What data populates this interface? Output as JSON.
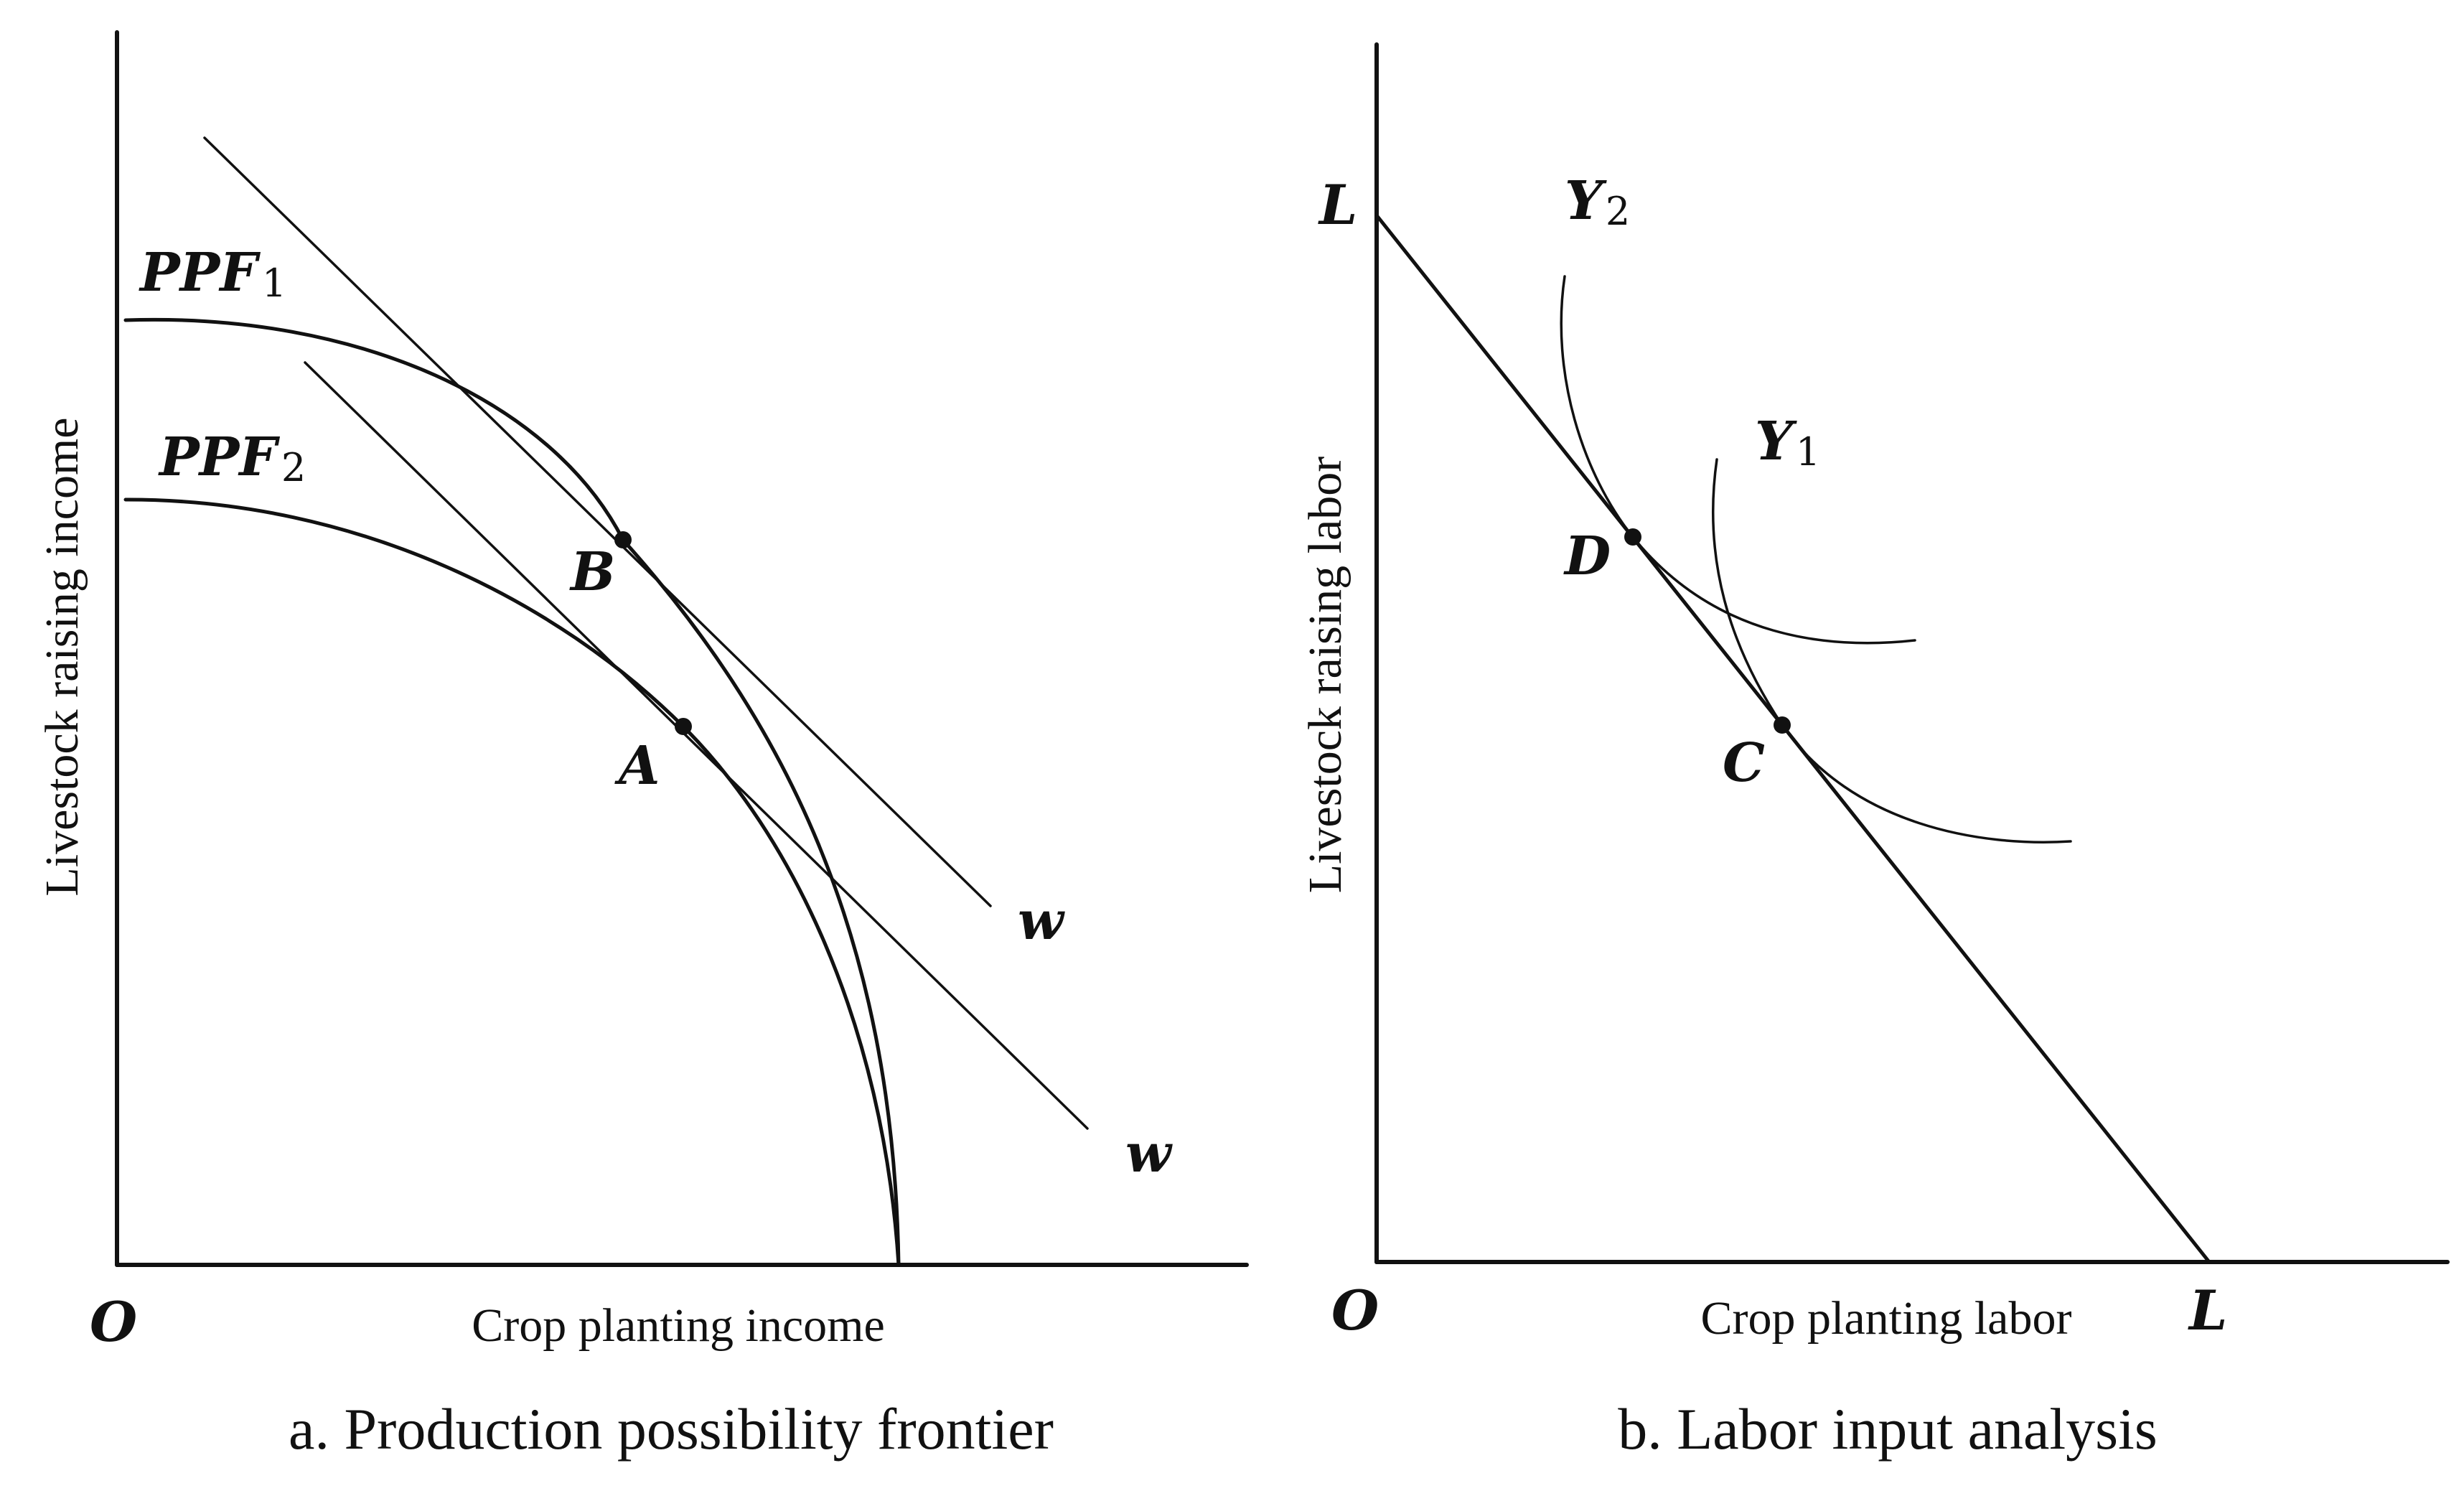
{
  "panel_a": {
    "caption": "a. Production possibility frontier",
    "x_axis_label": "Crop planting income",
    "y_axis_label": "Livestock raising income",
    "origin_label": "O",
    "curves": [
      {
        "base": "PPF",
        "sub": "1"
      },
      {
        "base": "PPF",
        "sub": "2"
      }
    ],
    "points": [
      "B",
      "A"
    ],
    "line_labels": [
      "w",
      "w"
    ]
  },
  "panel_b": {
    "caption": "b. Labor input analysis",
    "x_axis_label": "Crop planting labor",
    "y_axis_label": "Livestock raising labor",
    "origin_label": "O",
    "budget_y_label": "L",
    "budget_x_label": "L",
    "curves": [
      {
        "base": "Y",
        "sub": "2"
      },
      {
        "base": "Y",
        "sub": "1"
      }
    ],
    "points": [
      "D",
      "C"
    ]
  }
}
